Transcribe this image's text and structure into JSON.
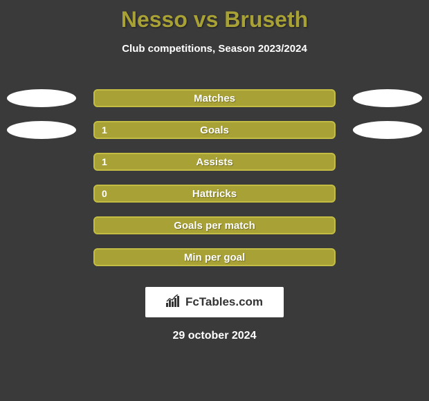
{
  "title_color": "#a8a136",
  "title": "Nesso vs Bruseth",
  "subtitle": "Club competitions, Season 2023/2024",
  "background_color": "#3a3a3a",
  "text_color": "#ffffff",
  "ellipse_color": "#ffffff",
  "rows": [
    {
      "label": "Matches",
      "color": "#a8a136",
      "border": "#c4bd44",
      "value_left": "",
      "show_ellipse_left": true,
      "show_ellipse_right": true
    },
    {
      "label": "Goals",
      "color": "#a8a136",
      "border": "#c4bd44",
      "value_left": "1",
      "show_ellipse_left": true,
      "show_ellipse_right": true
    },
    {
      "label": "Assists",
      "color": "#a8a136",
      "border": "#c4bd44",
      "value_left": "1",
      "show_ellipse_left": false,
      "show_ellipse_right": false
    },
    {
      "label": "Hattricks",
      "color": "#a8a136",
      "border": "#c4bd44",
      "value_left": "0",
      "show_ellipse_left": false,
      "show_ellipse_right": false
    },
    {
      "label": "Goals per match",
      "color": "#a8a136",
      "border": "#c4bd44",
      "value_left": "",
      "show_ellipse_left": false,
      "show_ellipse_right": false
    },
    {
      "label": "Min per goal",
      "color": "#a8a136",
      "border": "#c4bd44",
      "value_left": "",
      "show_ellipse_left": false,
      "show_ellipse_right": false
    }
  ],
  "logo_text": "FcTables.com",
  "date": "29 october 2024"
}
